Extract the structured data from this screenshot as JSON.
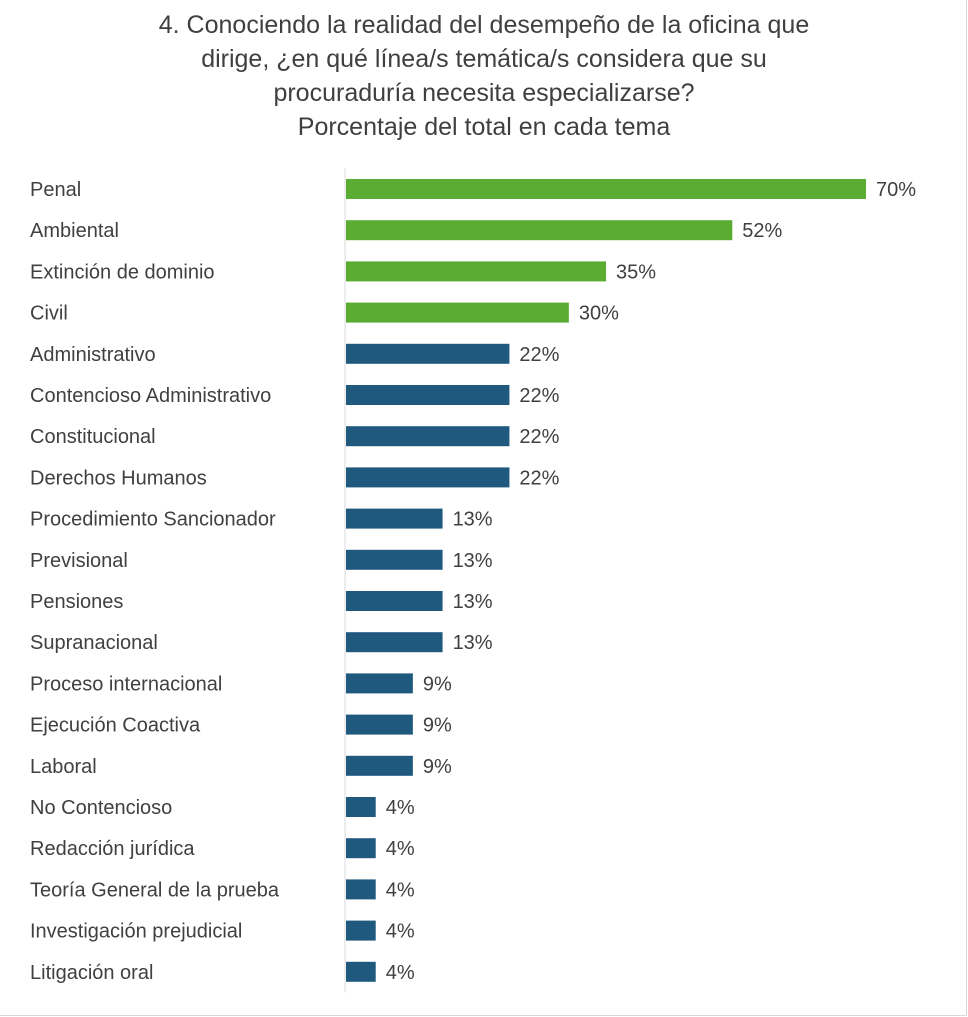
{
  "chart_data": {
    "type": "bar",
    "orientation": "horizontal",
    "title": [
      "4. Conociendo la realidad del desempeño de la oficina que",
      "dirige, ¿en qué línea/s temática/s considera que su",
      "procuraduría necesita especializarse?",
      "Porcentaje del total en cada tema"
    ],
    "categories": [
      "Penal",
      "Ambiental",
      "Extinción de dominio",
      "Civil",
      "Administrativo",
      "Contencioso Administrativo",
      "Constitucional",
      "Derechos Humanos",
      "Procedimiento Sancionador",
      "Previsional",
      "Pensiones",
      "Supranacional",
      "Proceso internacional",
      "Ejecución Coactiva",
      "Laboral",
      "No Contencioso",
      "Redacción jurídica",
      "Teoría General de la prueba",
      "Investigación prejudicial",
      "Litigación oral"
    ],
    "values": [
      70,
      52,
      35,
      30,
      22,
      22,
      22,
      22,
      13,
      13,
      13,
      13,
      9,
      9,
      9,
      4,
      4,
      4,
      4,
      4
    ],
    "data_labels": [
      "70%",
      "52%",
      "35%",
      "30%",
      "22%",
      "22%",
      "22%",
      "22%",
      "13%",
      "13%",
      "13%",
      "13%",
      "9%",
      "9%",
      "9%",
      "4%",
      "4%",
      "4%",
      "4%",
      "4%"
    ],
    "unit": "%",
    "xlim": [
      0,
      70
    ],
    "grid": false,
    "legend": "none",
    "highlight_count": 4,
    "colors": {
      "highlight": "#5aad32",
      "default": "#1f5a7e",
      "axis": "#d9d9d9",
      "text": "#404040"
    }
  }
}
